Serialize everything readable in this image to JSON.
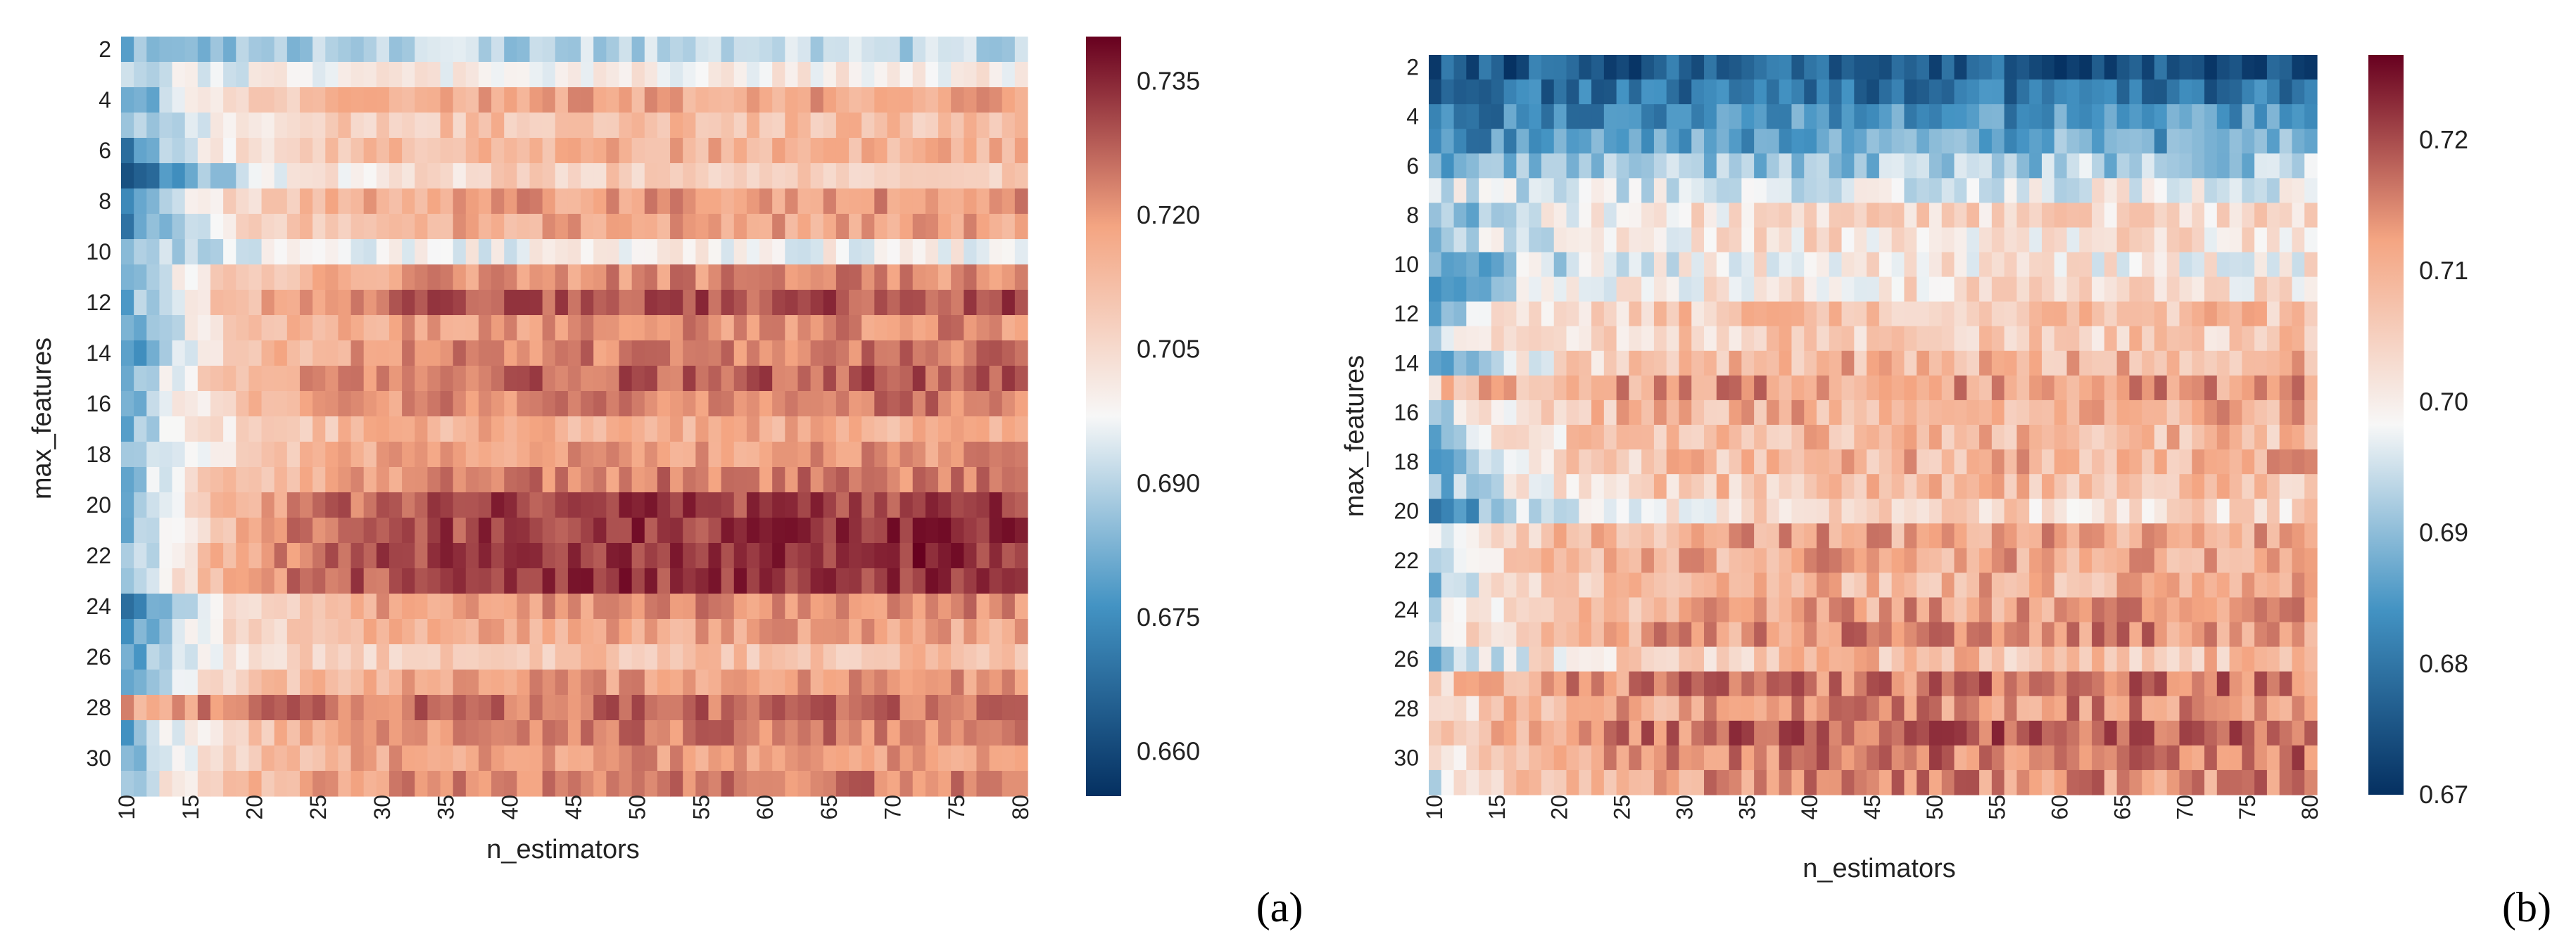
{
  "colors": {
    "low": "#053061",
    "low_mid": "#4393c3",
    "mid": "#f7f7f7",
    "high_mid": "#f4a582",
    "high": "#67001f",
    "text": "#222222"
  },
  "chart_data": [
    {
      "type": "heatmap",
      "panel_label": "(a)",
      "xlabel": "n_estimators",
      "ylabel": "max_features",
      "x": {
        "min": 10,
        "max": 80,
        "ticks": [
          "10",
          "15",
          "20",
          "25",
          "30",
          "35",
          "40",
          "45",
          "50",
          "55",
          "60",
          "65",
          "70",
          "75",
          "80"
        ]
      },
      "y": {
        "min": 2,
        "max": 31,
        "ticks": [
          "2",
          "4",
          "6",
          "8",
          "10",
          "12",
          "14",
          "16",
          "18",
          "20",
          "22",
          "24",
          "26",
          "28",
          "30"
        ]
      },
      "colorbar": {
        "min": 0.655,
        "max": 0.74,
        "ticks": [
          "0.660",
          "0.675",
          "0.690",
          "0.705",
          "0.720",
          "0.735"
        ],
        "tick_values": [
          0.66,
          0.675,
          0.69,
          0.705,
          0.72,
          0.735
        ]
      },
      "row_profile": {
        "rows": [
          2,
          3,
          4,
          5,
          6,
          7,
          8,
          9,
          10,
          11,
          12,
          13,
          14,
          15,
          16,
          17,
          18,
          19,
          20,
          21,
          22,
          23,
          24,
          25,
          26,
          27,
          28,
          29,
          30,
          31
        ],
        "start": [
          0.682,
          0.69,
          0.676,
          0.682,
          0.673,
          0.657,
          0.68,
          0.674,
          0.686,
          0.684,
          0.68,
          0.678,
          0.674,
          0.68,
          0.68,
          0.684,
          0.682,
          0.684,
          0.68,
          0.68,
          0.684,
          0.686,
          0.666,
          0.676,
          0.678,
          0.68,
          0.718,
          0.68,
          0.684,
          0.688
        ],
        "plateau": [
          0.69,
          0.7,
          0.718,
          0.712,
          0.716,
          0.708,
          0.72,
          0.718,
          0.698,
          0.722,
          0.73,
          0.722,
          0.724,
          0.728,
          0.724,
          0.716,
          0.72,
          0.724,
          0.732,
          0.733,
          0.734,
          0.733,
          0.722,
          0.718,
          0.712,
          0.72,
          0.726,
          0.724,
          0.72,
          0.724
        ]
      }
    },
    {
      "type": "heatmap",
      "panel_label": "(b)",
      "xlabel": "n_estimators",
      "ylabel": "max_features",
      "x": {
        "min": 10,
        "max": 80,
        "ticks": [
          "10",
          "15",
          "20",
          "25",
          "30",
          "35",
          "40",
          "45",
          "50",
          "55",
          "60",
          "65",
          "70",
          "75",
          "80"
        ]
      },
      "y": {
        "min": 2,
        "max": 31,
        "ticks": [
          "2",
          "4",
          "6",
          "8",
          "10",
          "12",
          "14",
          "16",
          "18",
          "20",
          "22",
          "24",
          "26",
          "28",
          "30"
        ]
      },
      "colorbar": {
        "min": 0.67,
        "max": 0.7265,
        "ticks": [
          "0.67",
          "0.68",
          "0.69",
          "0.70",
          "0.71",
          "0.72"
        ],
        "tick_values": [
          0.67,
          0.68,
          0.69,
          0.7,
          0.71,
          0.72
        ]
      },
      "row_profile": {
        "rows": [
          2,
          3,
          4,
          5,
          6,
          7,
          8,
          9,
          10,
          11,
          12,
          13,
          14,
          15,
          16,
          17,
          18,
          19,
          20,
          21,
          22,
          23,
          24,
          25,
          26,
          27,
          28,
          29,
          30,
          31
        ],
        "start": [
          0.676,
          0.678,
          0.68,
          0.682,
          0.688,
          0.694,
          0.686,
          0.69,
          0.684,
          0.686,
          0.69,
          0.694,
          0.684,
          0.706,
          0.694,
          0.69,
          0.684,
          0.688,
          0.68,
          0.696,
          0.698,
          0.692,
          0.696,
          0.698,
          0.686,
          0.704,
          0.7,
          0.702,
          0.698,
          0.696
        ],
        "plateau": [
          0.676,
          0.679,
          0.684,
          0.687,
          0.692,
          0.698,
          0.703,
          0.702,
          0.7,
          0.702,
          0.708,
          0.706,
          0.71,
          0.713,
          0.711,
          0.709,
          0.71,
          0.708,
          0.704,
          0.712,
          0.712,
          0.71,
          0.712,
          0.714,
          0.708,
          0.716,
          0.714,
          0.718,
          0.716,
          0.714
        ]
      }
    }
  ]
}
